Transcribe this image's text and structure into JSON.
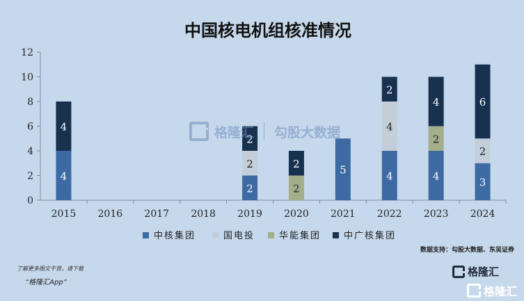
{
  "chart_data": {
    "type": "bar",
    "stacked": true,
    "title": "中国核电机组核准情况",
    "categories": [
      "2015",
      "2016",
      "2017",
      "2018",
      "2019",
      "2020",
      "2021",
      "2022",
      "2023",
      "2024"
    ],
    "series": [
      {
        "name": "中核集团",
        "color": "#3d6aa3",
        "values": [
          4,
          0,
          0,
          0,
          2,
          0,
          5,
          4,
          4,
          3
        ]
      },
      {
        "name": "国电投",
        "color": "#c3ced9",
        "values": [
          0,
          0,
          0,
          0,
          2,
          0,
          0,
          4,
          0,
          2
        ]
      },
      {
        "name": "华能集团",
        "color": "#a3ae8c",
        "values": [
          0,
          0,
          0,
          0,
          0,
          2,
          0,
          0,
          2,
          0
        ]
      },
      {
        "name": "中广核集团",
        "color": "#18314f",
        "values": [
          4,
          0,
          0,
          0,
          2,
          2,
          0,
          2,
          4,
          6
        ]
      }
    ],
    "yticks": [
      0,
      2,
      4,
      6,
      8,
      10,
      12
    ],
    "ylim": [
      0,
      12
    ],
    "grid": false,
    "legend_position": "bottom"
  },
  "source": "数据支持：勾股大数据、东吴证券",
  "footnote": "了解更多图文干货，请下载",
  "app_link": "“格隆汇App”",
  "brand": {
    "name": "格隆汇"
  },
  "watermark": {
    "brand": "格隆汇",
    "name2": "勾股大数据"
  }
}
